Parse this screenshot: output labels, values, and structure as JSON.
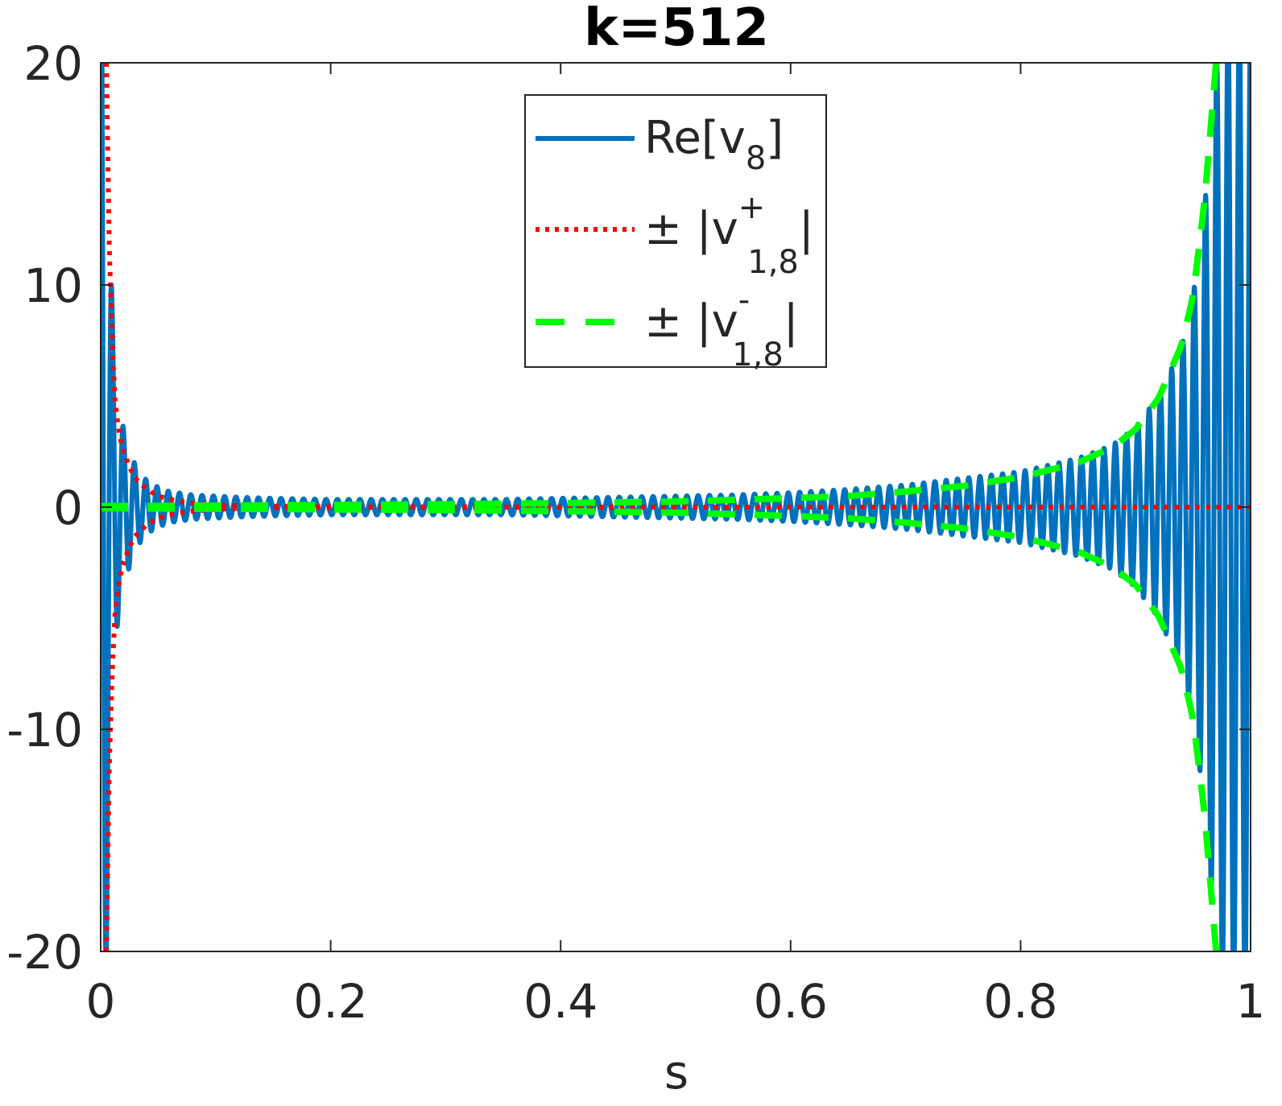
{
  "chart_data": {
    "type": "line",
    "title": "k=512",
    "xlabel": "s",
    "ylabel": "",
    "xlim": [
      0,
      1
    ],
    "ylim": [
      -20,
      20
    ],
    "xticks": [
      0,
      0.2,
      0.4,
      0.6,
      0.8,
      1
    ],
    "xtick_labels": [
      "0",
      "0.2",
      "0.4",
      "0.6",
      "0.8",
      "1"
    ],
    "yticks": [
      -20,
      -10,
      0,
      10,
      20
    ],
    "ytick_labels": [
      "-20",
      "-10",
      "0",
      "10",
      "20"
    ],
    "grid": false,
    "legend_position": "top-center",
    "legend": [
      {
        "base": "Re[v",
        "sub": "8",
        "sup": "",
        "tail": "]",
        "style": "solid",
        "color": "#0072BD"
      },
      {
        "base": "± |v",
        "sub": "1,8",
        "sup": "+",
        "tail": "|",
        "style": "dotted",
        "color": "#FF0000"
      },
      {
        "base": "± |v",
        "sub": "1,8",
        "sup": "-",
        "tail": "|",
        "style": "dashed",
        "color": "#00FF00"
      }
    ],
    "series": [
      {
        "kind": "oscillation",
        "style": "solid",
        "color": "#0072BD",
        "cycles": 51,
        "envelope_s": [
          0,
          0.005,
          0.01,
          0.015,
          0.02,
          0.03,
          0.04,
          0.05,
          0.06,
          0.08,
          0.1,
          0.12,
          0.15,
          0.2,
          0.25,
          0.3,
          0.35,
          0.4,
          0.45,
          0.5,
          0.55,
          0.6,
          0.65,
          0.7,
          0.75,
          0.8,
          0.85,
          0.88,
          0.9,
          0.92,
          0.94,
          0.95,
          0.96,
          0.97,
          0.98,
          0.99,
          1.0
        ],
        "envelope_v": [
          30,
          20,
          9,
          5,
          3.5,
          1.9,
          1.2,
          0.9,
          0.7,
          0.55,
          0.5,
          0.45,
          0.4,
          0.35,
          0.35,
          0.35,
          0.35,
          0.4,
          0.45,
          0.5,
          0.55,
          0.65,
          0.8,
          1.0,
          1.3,
          1.6,
          2.2,
          2.8,
          3.6,
          5.0,
          7.2,
          9.5,
          13.5,
          20,
          22,
          22,
          22
        ]
      },
      {
        "kind": "envelope-pm",
        "style": "dotted",
        "color": "#FF0000",
        "s": [
          0.005,
          0.008,
          0.012,
          0.016,
          0.02,
          0.025,
          0.03,
          0.04,
          0.05,
          0.06,
          0.07,
          0.08,
          0.1,
          0.12,
          0.15,
          0.2,
          0.3,
          0.5,
          0.7,
          1.0
        ],
        "v": [
          20,
          10,
          5,
          3.3,
          2.5,
          1.8,
          1.3,
          0.8,
          0.5,
          0.35,
          0.25,
          0.18,
          0.1,
          0.06,
          0.04,
          0.02,
          0.01,
          0.0,
          0.0,
          0.0
        ]
      },
      {
        "kind": "envelope-pm",
        "style": "dashed",
        "color": "#00FF00",
        "s": [
          0.0,
          0.1,
          0.2,
          0.3,
          0.4,
          0.5,
          0.6,
          0.65,
          0.7,
          0.75,
          0.8,
          0.85,
          0.88,
          0.9,
          0.92,
          0.94,
          0.95,
          0.96,
          0.97
        ],
        "v": [
          0.05,
          0.07,
          0.1,
          0.13,
          0.18,
          0.25,
          0.4,
          0.5,
          0.7,
          0.95,
          1.35,
          2.0,
          2.7,
          3.5,
          4.9,
          7.3,
          9.5,
          13.8,
          20
        ]
      }
    ]
  }
}
